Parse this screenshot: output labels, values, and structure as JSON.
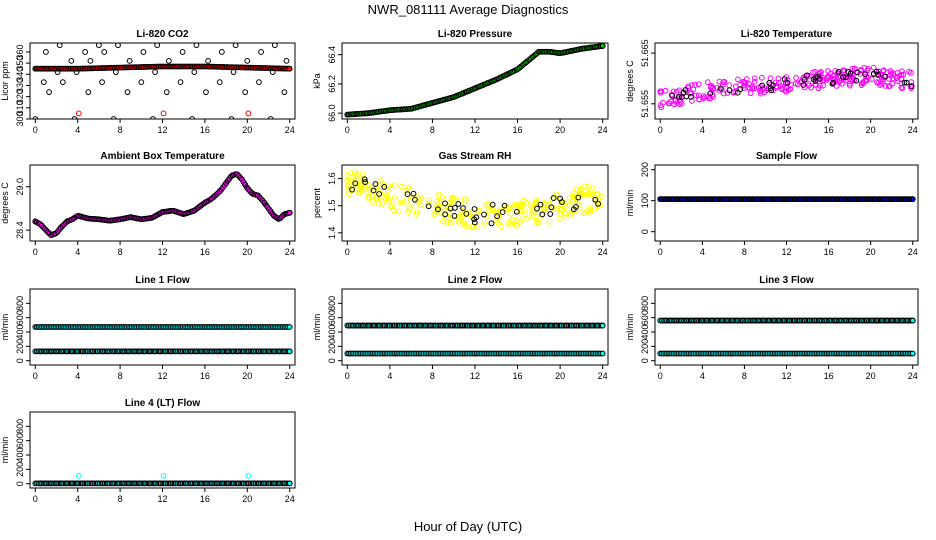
{
  "figure": {
    "title": "NWR_081111  Average Diagnostics",
    "xlabel": "Hour of Day (UTC)"
  },
  "chart_data": [
    {
      "id": "co2",
      "type": "scatter",
      "title": "Li-820 CO2",
      "ylabel": "Licor ppm",
      "x_ticks": [
        0,
        4,
        8,
        12,
        16,
        20,
        24
      ],
      "xlim": [
        -0.5,
        24.5
      ],
      "y_ticks": [
        300,
        310,
        320,
        330,
        340,
        350,
        360
      ],
      "ylim": [
        300,
        368
      ],
      "series": [
        {
          "color": "#ff0000",
          "marker": "filled",
          "x_range": [
            0,
            24
          ],
          "y_values": [
            345,
            345,
            346,
            347,
            347,
            346,
            345
          ]
        },
        {
          "color": "#000000",
          "marker": "open-sparse",
          "levels": [
            300,
            324,
            333,
            342,
            352,
            360,
            366
          ]
        },
        {
          "color": "#ff0000",
          "marker": "open-sparse",
          "x": [
            4.1,
            12.1,
            20.1
          ],
          "y": [
            305,
            305,
            305
          ]
        }
      ]
    },
    {
      "id": "pressure",
      "type": "scatter",
      "title": "Li-820 Pressure",
      "ylabel": "kPa",
      "x_ticks": [
        0,
        4,
        8,
        12,
        16,
        20,
        24
      ],
      "xlim": [
        -0.5,
        24.5
      ],
      "y_ticks": [
        66.0,
        66.2,
        66.4
      ],
      "ylim": [
        65.96,
        66.48
      ],
      "series": [
        {
          "color": "#00cc00",
          "marker": "filled",
          "x": [
            0,
            2,
            4,
            6,
            8,
            10,
            12,
            14,
            16,
            17,
            18,
            19,
            20,
            22,
            24
          ],
          "y": [
            65.99,
            66.0,
            66.02,
            66.03,
            66.07,
            66.11,
            66.17,
            66.23,
            66.3,
            66.36,
            66.42,
            66.42,
            66.41,
            66.44,
            66.46
          ]
        }
      ]
    },
    {
      "id": "li820_temp",
      "type": "scatter",
      "title": "Li-820 Temperature",
      "ylabel": "degrees C",
      "x_ticks": [
        0,
        4,
        8,
        12,
        16,
        20,
        24
      ],
      "xlim": [
        -0.5,
        24.5
      ],
      "y_ticks": [
        51.655,
        51.665
      ],
      "ylim": [
        51.652,
        51.667
      ],
      "series": [
        {
          "color": "#ff00ff",
          "marker": "open",
          "x": [
            0,
            4,
            8,
            12,
            16,
            20,
            24
          ],
          "y": [
            51.656,
            51.6575,
            51.6585,
            51.659,
            51.66,
            51.6605,
            51.6595
          ],
          "spread": 0.0035
        }
      ]
    },
    {
      "id": "ambient_box",
      "type": "scatter",
      "title": "Ambient Box Temperature",
      "ylabel": "degrees C",
      "x_ticks": [
        0,
        4,
        8,
        12,
        16,
        20,
        24
      ],
      "xlim": [
        -0.5,
        24.5
      ],
      "y_ticks": [
        28.4,
        29.0
      ],
      "ylim": [
        28.25,
        29.3
      ],
      "series": [
        {
          "color": "#ff00ff",
          "marker": "filled",
          "x": [
            0,
            0.5,
            1,
            1.5,
            2,
            2.5,
            3,
            3.5,
            4,
            5,
            6,
            7,
            8,
            9,
            10,
            11,
            12,
            13,
            14,
            15,
            16,
            16.5,
            17,
            17.5,
            18,
            18.5,
            19,
            19.5,
            20,
            20.5,
            21,
            21.5,
            22,
            22.5,
            23,
            23.5,
            24
          ],
          "y": [
            28.52,
            28.48,
            28.4,
            28.33,
            28.36,
            28.45,
            28.52,
            28.55,
            28.6,
            28.56,
            28.55,
            28.53,
            28.55,
            28.58,
            28.55,
            28.57,
            28.65,
            28.67,
            28.62,
            28.67,
            28.78,
            28.82,
            28.88,
            28.95,
            29.05,
            29.15,
            29.18,
            29.1,
            28.98,
            28.9,
            28.88,
            28.8,
            28.7,
            28.6,
            28.55,
            28.62,
            28.64
          ]
        }
      ]
    },
    {
      "id": "gas_rh",
      "type": "scatter",
      "title": "Gas Stream RH",
      "ylabel": "percent",
      "x_ticks": [
        0,
        4,
        8,
        12,
        16,
        20,
        24
      ],
      "xlim": [
        -0.5,
        24.5
      ],
      "y_ticks": [
        1.4,
        1.5,
        1.6
      ],
      "ylim": [
        1.37,
        1.65
      ],
      "series": [
        {
          "color": "#ffff00",
          "marker": "open",
          "x": [
            0,
            2,
            4,
            6,
            8,
            10,
            12,
            14,
            16,
            18,
            20,
            22,
            24
          ],
          "y": [
            1.59,
            1.57,
            1.53,
            1.52,
            1.5,
            1.48,
            1.47,
            1.47,
            1.47,
            1.48,
            1.5,
            1.52,
            1.53
          ],
          "spread": 0.1
        }
      ]
    },
    {
      "id": "sample_flow",
      "type": "scatter",
      "title": "Sample Flow",
      "ylabel": "ml/min",
      "x_ticks": [
        0,
        4,
        8,
        12,
        16,
        20,
        24
      ],
      "xlim": [
        -0.5,
        24.5
      ],
      "y_ticks": [
        0,
        100,
        200
      ],
      "ylim": [
        -30,
        215
      ],
      "series": [
        {
          "color": "#0000ff",
          "marker": "filled",
          "x_range": [
            0,
            24
          ],
          "y_values": [
            105,
            105
          ]
        }
      ]
    },
    {
      "id": "line1",
      "type": "scatter",
      "title": "Line 1 Flow",
      "ylabel": "ml/min",
      "x_ticks": [
        0,
        4,
        8,
        12,
        16,
        20,
        24
      ],
      "xlim": [
        -0.5,
        24.5
      ],
      "y_ticks": [
        0,
        200,
        400,
        600,
        800
      ],
      "ylim": [
        -60,
        1000
      ],
      "series": [
        {
          "color": "#00ffff",
          "marker": "filled",
          "x_range": [
            0,
            24
          ],
          "y_values": [
            470,
            470
          ]
        },
        {
          "color": "#00ffff",
          "marker": "filled",
          "x_range": [
            0,
            24
          ],
          "y_values": [
            130,
            130
          ]
        }
      ]
    },
    {
      "id": "line2",
      "type": "scatter",
      "title": "Line 2 Flow",
      "ylabel": "ml/min",
      "x_ticks": [
        0,
        4,
        8,
        12,
        16,
        20,
        24
      ],
      "xlim": [
        -0.5,
        24.5
      ],
      "y_ticks": [
        0,
        200,
        400,
        600,
        800
      ],
      "ylim": [
        -60,
        1000
      ],
      "series": [
        {
          "color": "#00ffff",
          "marker": "filled",
          "x_range": [
            0,
            24
          ],
          "y_values": [
            490,
            490
          ]
        },
        {
          "color": "#00ffff",
          "marker": "filled",
          "x_range": [
            0,
            24
          ],
          "y_values": [
            100,
            100
          ]
        }
      ]
    },
    {
      "id": "line3",
      "type": "scatter",
      "title": "Line 3 Flow",
      "ylabel": "ml/min",
      "x_ticks": [
        0,
        4,
        8,
        12,
        16,
        20,
        24
      ],
      "xlim": [
        -0.5,
        24.5
      ],
      "y_ticks": [
        0,
        200,
        400,
        600,
        800
      ],
      "ylim": [
        -60,
        1000
      ],
      "series": [
        {
          "color": "#00ffff",
          "marker": "filled",
          "x_range": [
            0,
            24
          ],
          "y_values": [
            560,
            560
          ]
        },
        {
          "color": "#00ffff",
          "marker": "filled",
          "x_range": [
            0,
            24
          ],
          "y_values": [
            100,
            100
          ]
        }
      ]
    },
    {
      "id": "line4",
      "type": "scatter",
      "title": "Line 4 (LT) Flow",
      "ylabel": "ml/min",
      "x_ticks": [
        0,
        4,
        8,
        12,
        16,
        20,
        24
      ],
      "xlim": [
        -0.5,
        24.5
      ],
      "y_ticks": [
        0,
        200,
        400,
        600,
        800
      ],
      "ylim": [
        -60,
        1000
      ],
      "series": [
        {
          "color": "#00ffff",
          "marker": "filled",
          "x_range": [
            0,
            24
          ],
          "y_values": [
            5,
            5
          ]
        },
        {
          "color": "#00ffff",
          "marker": "open-sparse",
          "x": [
            4.1,
            12.1,
            20.1
          ],
          "y": [
            110,
            110,
            110
          ]
        }
      ]
    }
  ]
}
